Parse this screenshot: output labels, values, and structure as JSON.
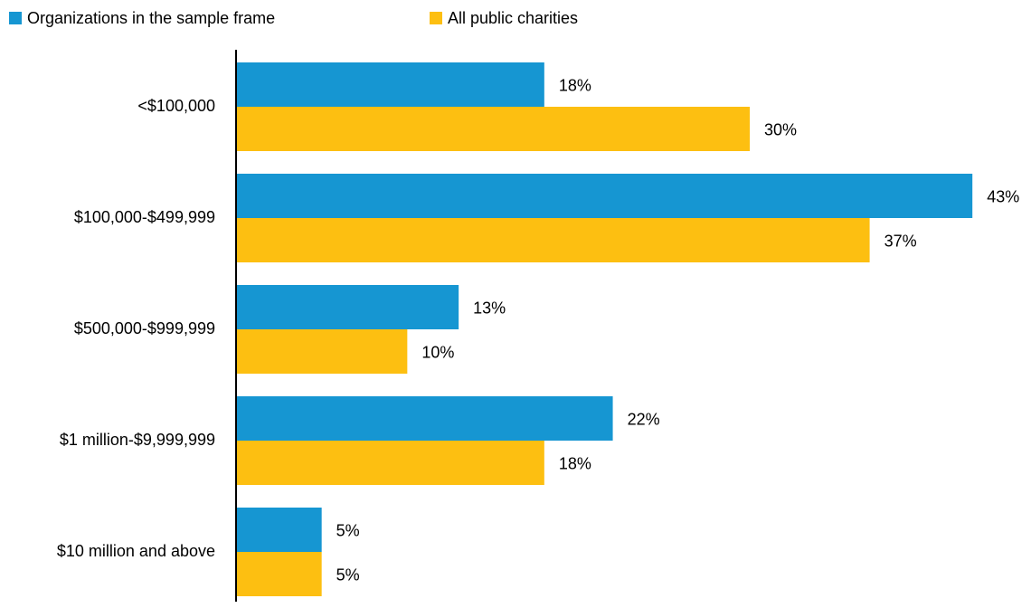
{
  "chart_data": {
    "type": "hbar",
    "categories": [
      "<$100,000",
      "$100,000-$499,999",
      "$500,000-$999,999",
      "$1 million-$9,999,999",
      "$10 million and above"
    ],
    "series": [
      {
        "name": "Organizations in the sample frame",
        "color": "#1696d2",
        "values": [
          18,
          43,
          13,
          22,
          5
        ],
        "value_labels": [
          "18%",
          "43%",
          "13%",
          "22%",
          "5%"
        ]
      },
      {
        "name": "All public charities",
        "color": "#fdbf11",
        "values": [
          30,
          37,
          10,
          18,
          5
        ],
        "value_labels": [
          "30%",
          "37%",
          "10%",
          "18%",
          "5%"
        ]
      }
    ],
    "xlim": [
      0,
      46
    ],
    "legend": "top-left"
  }
}
